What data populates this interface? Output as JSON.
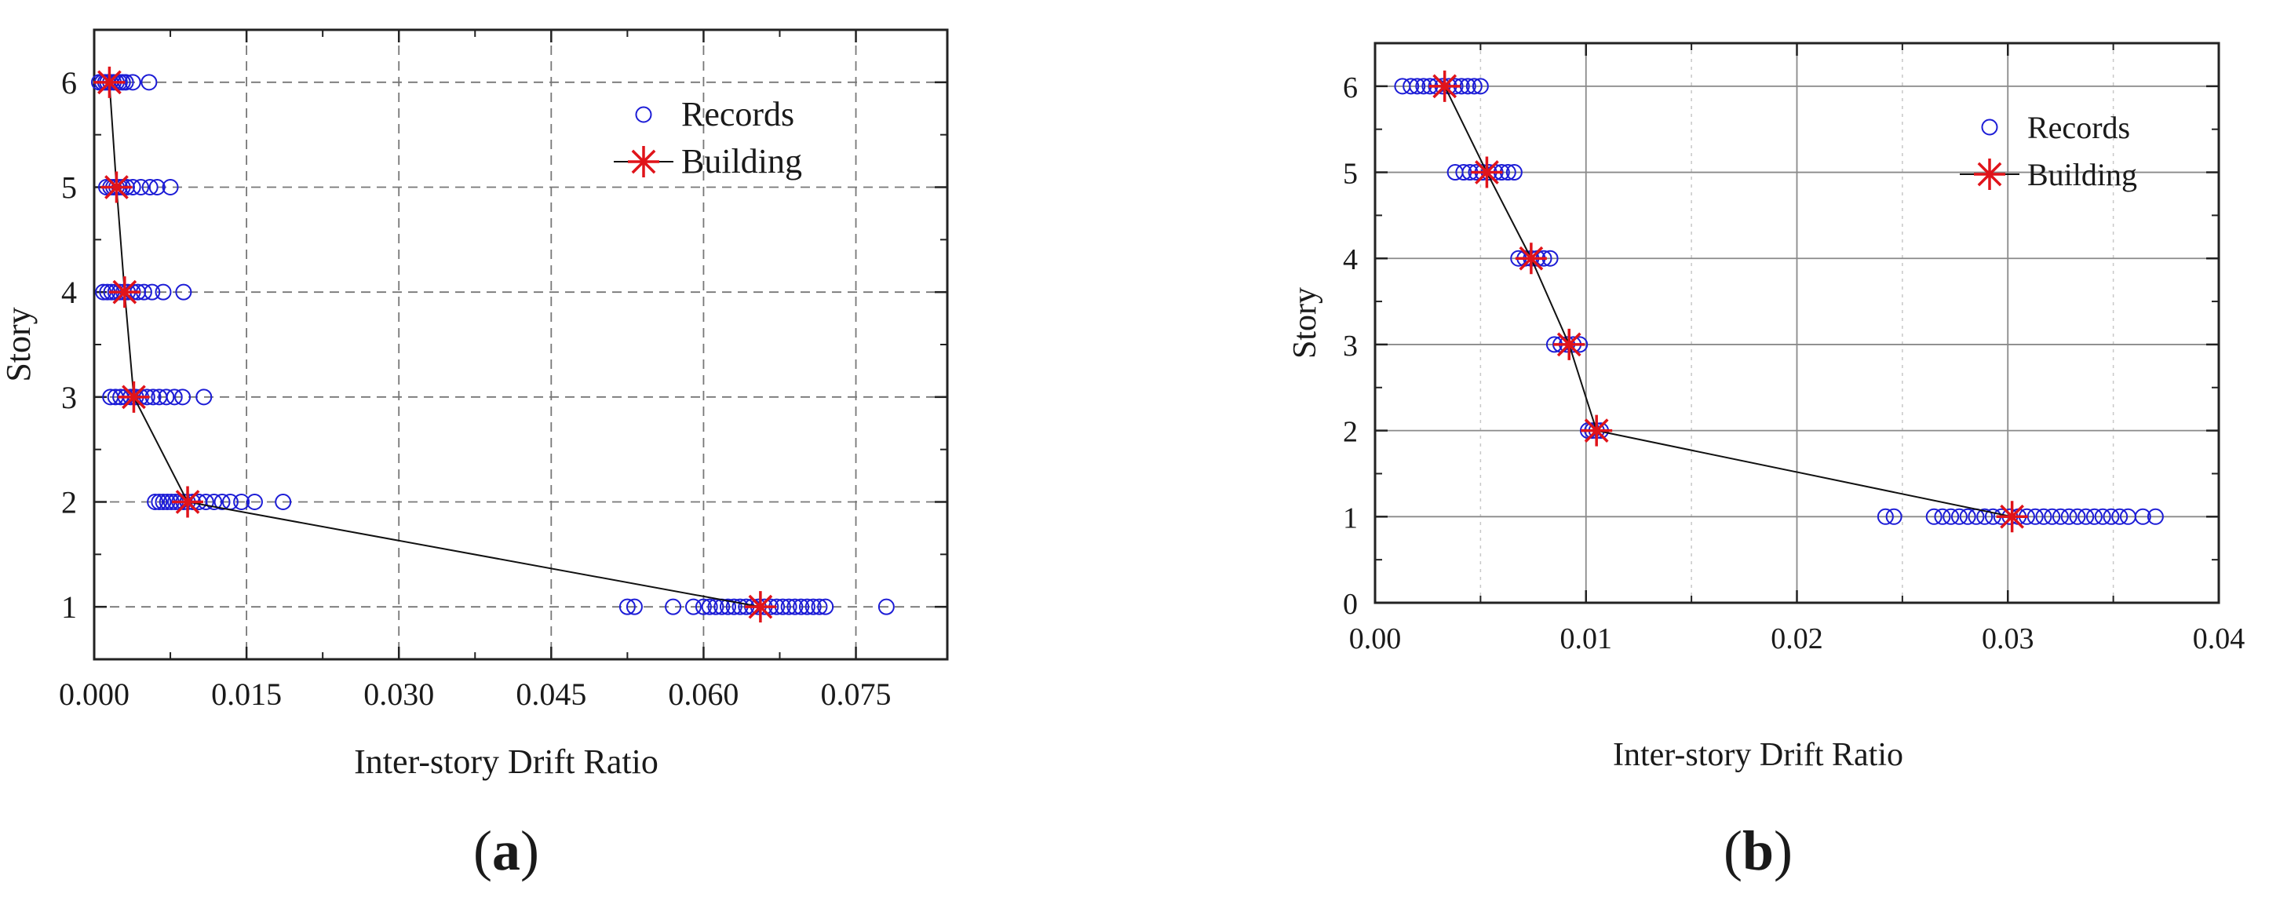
{
  "colors": {
    "records": "#1c1cd6",
    "building": "#e0141a",
    "axis": "#222222",
    "grid_major": "#8a8a8a",
    "grid_minor": "#c8c8c8"
  },
  "chart_data": [
    {
      "type": "scatter",
      "panel_label": "(a)",
      "panel_letter": "a",
      "xlabel": "Inter-story Drift Ratio",
      "ylabel": "Story",
      "xlim": [
        0.0,
        0.084
      ],
      "ylim": [
        0.5,
        6.5
      ],
      "xticks": [
        0.0,
        0.015,
        0.03,
        0.045,
        0.06,
        0.075
      ],
      "xtick_labels": [
        "0.000",
        "0.015",
        "0.030",
        "0.045",
        "0.060",
        "0.075"
      ],
      "yticks": [
        1,
        2,
        3,
        4,
        5,
        6
      ],
      "ytick_labels": [
        "1",
        "2",
        "3",
        "4",
        "5",
        "6"
      ],
      "grid": "dashed",
      "legend": {
        "position": "top-right",
        "entries": [
          "Records",
          "Building"
        ]
      },
      "series": [
        {
          "name": "Records",
          "marker": "open-circle",
          "points": [
            [
              0.0005,
              6
            ],
            [
              0.0008,
              6
            ],
            [
              0.0011,
              6
            ],
            [
              0.0013,
              6
            ],
            [
              0.0016,
              6
            ],
            [
              0.0019,
              6
            ],
            [
              0.0022,
              6
            ],
            [
              0.0025,
              6
            ],
            [
              0.0028,
              6
            ],
            [
              0.0031,
              6
            ],
            [
              0.0038,
              6
            ],
            [
              0.0054,
              6
            ],
            [
              0.0012,
              5
            ],
            [
              0.0016,
              5
            ],
            [
              0.0019,
              5
            ],
            [
              0.0022,
              5
            ],
            [
              0.0025,
              5
            ],
            [
              0.0028,
              5
            ],
            [
              0.0032,
              5
            ],
            [
              0.0038,
              5
            ],
            [
              0.0046,
              5
            ],
            [
              0.0055,
              5
            ],
            [
              0.0062,
              5
            ],
            [
              0.0075,
              5
            ],
            [
              0.0009,
              4
            ],
            [
              0.0013,
              4
            ],
            [
              0.0017,
              4
            ],
            [
              0.0021,
              4
            ],
            [
              0.0025,
              4
            ],
            [
              0.0029,
              4
            ],
            [
              0.0033,
              4
            ],
            [
              0.0038,
              4
            ],
            [
              0.0043,
              4
            ],
            [
              0.0049,
              4
            ],
            [
              0.0057,
              4
            ],
            [
              0.0068,
              4
            ],
            [
              0.0088,
              4
            ],
            [
              0.0016,
              3
            ],
            [
              0.0021,
              3
            ],
            [
              0.0026,
              3
            ],
            [
              0.0031,
              3
            ],
            [
              0.0036,
              3
            ],
            [
              0.0041,
              3
            ],
            [
              0.0046,
              3
            ],
            [
              0.0052,
              3
            ],
            [
              0.0058,
              3
            ],
            [
              0.0064,
              3
            ],
            [
              0.0071,
              3
            ],
            [
              0.0079,
              3
            ],
            [
              0.0087,
              3
            ],
            [
              0.0108,
              3
            ],
            [
              0.006,
              2
            ],
            [
              0.0064,
              2
            ],
            [
              0.0068,
              2
            ],
            [
              0.0072,
              2
            ],
            [
              0.0076,
              2
            ],
            [
              0.008,
              2
            ],
            [
              0.0084,
              2
            ],
            [
              0.0088,
              2
            ],
            [
              0.0092,
              2
            ],
            [
              0.0097,
              2
            ],
            [
              0.0103,
              2
            ],
            [
              0.011,
              2
            ],
            [
              0.0118,
              2
            ],
            [
              0.0126,
              2
            ],
            [
              0.0134,
              2
            ],
            [
              0.0145,
              2
            ],
            [
              0.0158,
              2
            ],
            [
              0.0186,
              2
            ],
            [
              0.0525,
              1
            ],
            [
              0.0532,
              1
            ],
            [
              0.057,
              1
            ],
            [
              0.059,
              1
            ],
            [
              0.06,
              1
            ],
            [
              0.0606,
              1
            ],
            [
              0.0612,
              1
            ],
            [
              0.0618,
              1
            ],
            [
              0.0624,
              1
            ],
            [
              0.063,
              1
            ],
            [
              0.0636,
              1
            ],
            [
              0.0642,
              1
            ],
            [
              0.0648,
              1
            ],
            [
              0.0654,
              1
            ],
            [
              0.066,
              1
            ],
            [
              0.0666,
              1
            ],
            [
              0.0672,
              1
            ],
            [
              0.0678,
              1
            ],
            [
              0.0684,
              1
            ],
            [
              0.069,
              1
            ],
            [
              0.0696,
              1
            ],
            [
              0.0702,
              1
            ],
            [
              0.0708,
              1
            ],
            [
              0.0714,
              1
            ],
            [
              0.072,
              1
            ],
            [
              0.078,
              1
            ]
          ]
        },
        {
          "name": "Building",
          "marker": "star",
          "line": true,
          "points": [
            [
              0.0015,
              6
            ],
            [
              0.0022,
              5
            ],
            [
              0.003,
              4
            ],
            [
              0.0039,
              3
            ],
            [
              0.0092,
              2
            ],
            [
              0.0656,
              1
            ]
          ]
        }
      ]
    },
    {
      "type": "scatter",
      "panel_label": "(b)",
      "panel_letter": "b",
      "xlabel": "Inter-story Drift Ratio",
      "ylabel": "Story",
      "xlim": [
        0.0,
        0.04
      ],
      "ylim": [
        0.0,
        6.5
      ],
      "xticks": [
        0.0,
        0.01,
        0.02,
        0.03,
        0.04
      ],
      "xtick_labels": [
        "0.00",
        "0.01",
        "0.02",
        "0.03",
        "0.04"
      ],
      "yticks": [
        0,
        1,
        2,
        3,
        4,
        5,
        6
      ],
      "ytick_labels": [
        "0",
        "1",
        "2",
        "3",
        "4",
        "5",
        "6"
      ],
      "grid": "solid",
      "legend": {
        "position": "top-right",
        "entries": [
          "Records",
          "Building"
        ]
      },
      "series": [
        {
          "name": "Records",
          "marker": "open-circle",
          "points": [
            [
              0.0013,
              6
            ],
            [
              0.0017,
              6
            ],
            [
              0.002,
              6
            ],
            [
              0.0023,
              6
            ],
            [
              0.0026,
              6
            ],
            [
              0.0029,
              6
            ],
            [
              0.0032,
              6
            ],
            [
              0.0035,
              6
            ],
            [
              0.0038,
              6
            ],
            [
              0.0041,
              6
            ],
            [
              0.0044,
              6
            ],
            [
              0.0047,
              6
            ],
            [
              0.005,
              6
            ],
            [
              0.0038,
              5
            ],
            [
              0.0042,
              5
            ],
            [
              0.0045,
              5
            ],
            [
              0.0048,
              5
            ],
            [
              0.0051,
              5
            ],
            [
              0.0054,
              5
            ],
            [
              0.0057,
              5
            ],
            [
              0.006,
              5
            ],
            [
              0.0063,
              5
            ],
            [
              0.0066,
              5
            ],
            [
              0.0068,
              4
            ],
            [
              0.0071,
              4
            ],
            [
              0.0074,
              4
            ],
            [
              0.0077,
              4
            ],
            [
              0.008,
              4
            ],
            [
              0.0083,
              4
            ],
            [
              0.0085,
              3
            ],
            [
              0.0088,
              3
            ],
            [
              0.0091,
              3
            ],
            [
              0.0094,
              3
            ],
            [
              0.0097,
              3
            ],
            [
              0.0101,
              2
            ],
            [
              0.0103,
              2
            ],
            [
              0.0105,
              2
            ],
            [
              0.0107,
              2
            ],
            [
              0.0242,
              1
            ],
            [
              0.0246,
              1
            ],
            [
              0.0265,
              1
            ],
            [
              0.0269,
              1
            ],
            [
              0.0273,
              1
            ],
            [
              0.0277,
              1
            ],
            [
              0.0281,
              1
            ],
            [
              0.0285,
              1
            ],
            [
              0.0289,
              1
            ],
            [
              0.0293,
              1
            ],
            [
              0.0297,
              1
            ],
            [
              0.0301,
              1
            ],
            [
              0.0305,
              1
            ],
            [
              0.0309,
              1
            ],
            [
              0.0313,
              1
            ],
            [
              0.0317,
              1
            ],
            [
              0.0321,
              1
            ],
            [
              0.0325,
              1
            ],
            [
              0.0329,
              1
            ],
            [
              0.0333,
              1
            ],
            [
              0.0337,
              1
            ],
            [
              0.0341,
              1
            ],
            [
              0.0345,
              1
            ],
            [
              0.0349,
              1
            ],
            [
              0.0353,
              1
            ],
            [
              0.0357,
              1
            ],
            [
              0.0364,
              1
            ],
            [
              0.037,
              1
            ]
          ]
        },
        {
          "name": "Building",
          "marker": "star",
          "line": true,
          "points": [
            [
              0.0033,
              6
            ],
            [
              0.0053,
              5
            ],
            [
              0.0074,
              4
            ],
            [
              0.0092,
              3
            ],
            [
              0.0105,
              2
            ],
            [
              0.0302,
              1
            ]
          ]
        }
      ]
    }
  ]
}
